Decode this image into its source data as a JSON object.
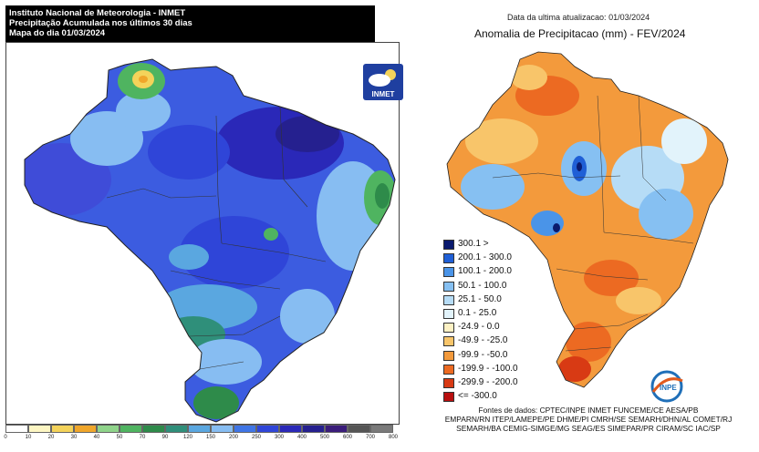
{
  "left": {
    "header": {
      "line1": "Instituto Nacional de Meteorologia - INMET",
      "line2": "Precipitação Acumulada nos últimos 30 dias",
      "line3": "Mapa do dia 01/03/2024"
    },
    "logo_text": "INMET",
    "legend": {
      "colors": [
        "#ffffff",
        "#fdf6c3",
        "#f4d35a",
        "#f0a62a",
        "#8fd48a",
        "#4fb460",
        "#2e8b4a",
        "#2f8f7a",
        "#5aa7e0",
        "#87bdf2",
        "#3f75e6",
        "#2f45d8",
        "#2a28b8",
        "#25208f",
        "#3a1c7a",
        "#555555",
        "#7a7a7a"
      ],
      "labels": [
        "0",
        "10",
        "20",
        "30",
        "40",
        "50",
        "70",
        "90",
        "120",
        "150",
        "200",
        "250",
        "300",
        "400",
        "500",
        "600",
        "700",
        "800"
      ]
    }
  },
  "right": {
    "date_label": "Data da ultima atualizacao: 01/03/2024",
    "title": "Anomalia de Precipitacao (mm) - FEV/2024",
    "legend": [
      {
        "label": "300.1 >",
        "color": "#0a1a6e"
      },
      {
        "label": "200.1 - 300.0",
        "color": "#1f5fd6"
      },
      {
        "label": "100.1 - 200.0",
        "color": "#4a94e8"
      },
      {
        "label": "50.1 - 100.0",
        "color": "#86c0f2"
      },
      {
        "label": "25.1 - 50.0",
        "color": "#b6dcf6"
      },
      {
        "label": "0.1 - 25.0",
        "color": "#e2f3fb"
      },
      {
        "label": "-24.9 - 0.0",
        "color": "#fdf1c4"
      },
      {
        "label": "-49.9 - -25.0",
        "color": "#f8c56a"
      },
      {
        "label": "-99.9 - -50.0",
        "color": "#f39a3c"
      },
      {
        "label": "-199.9 - -100.0",
        "color": "#ec6a22"
      },
      {
        "label": "-299.9 - -200.0",
        "color": "#d83a14"
      },
      {
        "label": "<= -300.0",
        "color": "#b80f0f"
      }
    ],
    "logo_text": "INPE",
    "sources": [
      "Fontes de dados: CPTEC/INPE INMET FUNCEME/CE AESA/PB",
      "EMPARN/RN ITEP/LAMEPE/PE DHME/PI CMRH/SE SEMARH/DHN/AL COMET/RJ",
      "SEMARH/BA CEMIG-SIMGE/MG SEAG/ES SIMEPAR/PR CIRAM/SC IAC/SP"
    ]
  }
}
